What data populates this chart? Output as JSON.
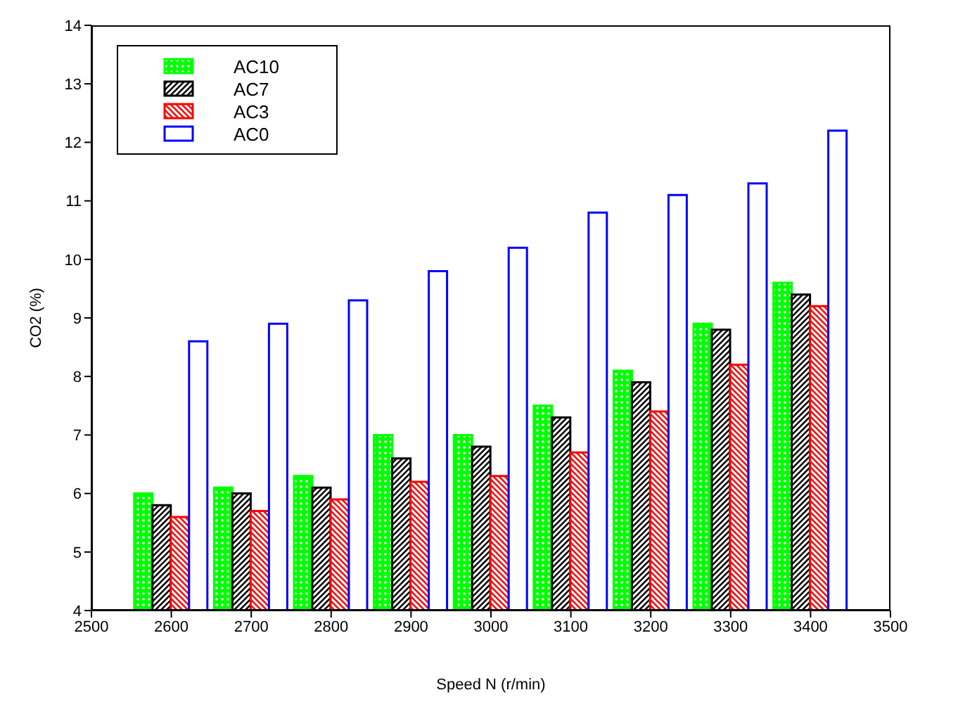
{
  "chart_data": {
    "type": "bar",
    "xlabel": "Speed N (r/min)",
    "ylabel": "CO2 (%)",
    "x": [
      2600,
      2700,
      2800,
      2900,
      3000,
      3100,
      3200,
      3300,
      3400
    ],
    "series": [
      {
        "name": "AC10",
        "color": "#00ff00",
        "values": [
          6.0,
          6.1,
          6.3,
          7.0,
          7.0,
          7.5,
          8.1,
          8.9,
          9.6
        ]
      },
      {
        "name": "AC7",
        "color": "#000000",
        "values": [
          5.8,
          6.0,
          6.1,
          6.6,
          6.8,
          7.3,
          7.9,
          8.8,
          9.4
        ]
      },
      {
        "name": "AC3",
        "color": "#ff0000",
        "values": [
          5.6,
          5.7,
          5.9,
          6.2,
          6.3,
          6.7,
          7.4,
          8.2,
          9.2
        ]
      },
      {
        "name": "AC0",
        "color": "#0000ff",
        "values": [
          8.6,
          8.9,
          9.3,
          9.8,
          10.2,
          10.8,
          11.1,
          11.3,
          12.2
        ]
      }
    ],
    "xlim": [
      2500,
      3500
    ],
    "xticks": [
      2500,
      2600,
      2700,
      2800,
      2900,
      3000,
      3100,
      3200,
      3300,
      3400,
      3500
    ],
    "ylim": [
      4,
      14
    ],
    "yticks": [
      4,
      5,
      6,
      7,
      8,
      9,
      10,
      11,
      12,
      13,
      14
    ],
    "grid": false,
    "legend": "top left"
  }
}
